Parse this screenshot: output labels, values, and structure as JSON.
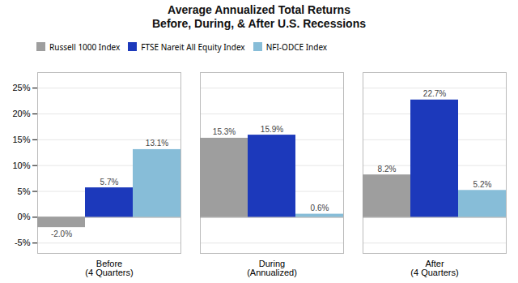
{
  "chart_data": {
    "type": "bar",
    "title": "Average Annualized Total Returns\nBefore, During, & After U.S. Recessions",
    "categories": [
      "Before\n(4 Quarters)",
      "During\n(Annualized)",
      "After\n(4 Quarters)"
    ],
    "series": [
      {
        "name": "Russell 1000 Index",
        "color": "#9e9e9e",
        "values": [
          -2.0,
          15.3,
          8.2
        ],
        "value_labels": [
          "-2.0%",
          "15.3%",
          "8.2%"
        ]
      },
      {
        "name": "FTSE Nareit All Equity Index",
        "color": "#1c39bb",
        "values": [
          5.7,
          15.9,
          22.7
        ],
        "value_labels": [
          "5.7%",
          "15.9%",
          "22.7%"
        ]
      },
      {
        "name": "NFI-ODCE Index",
        "color": "#87bdd8",
        "values": [
          13.1,
          0.6,
          5.2
        ],
        "value_labels": [
          "13.1%",
          "0.6%",
          "5.2%"
        ]
      }
    ],
    "ylim": [
      -7,
      28
    ],
    "yticks": [
      {
        "value": -5,
        "label": "-5%"
      },
      {
        "value": 0,
        "label": "0%"
      },
      {
        "value": 5,
        "label": "5%"
      },
      {
        "value": 10,
        "label": "10%"
      },
      {
        "value": 15,
        "label": "15%"
      },
      {
        "value": 20,
        "label": "20%"
      },
      {
        "value": 25,
        "label": "25%"
      }
    ],
    "grid": true,
    "legend": "top",
    "data_labels": true
  }
}
